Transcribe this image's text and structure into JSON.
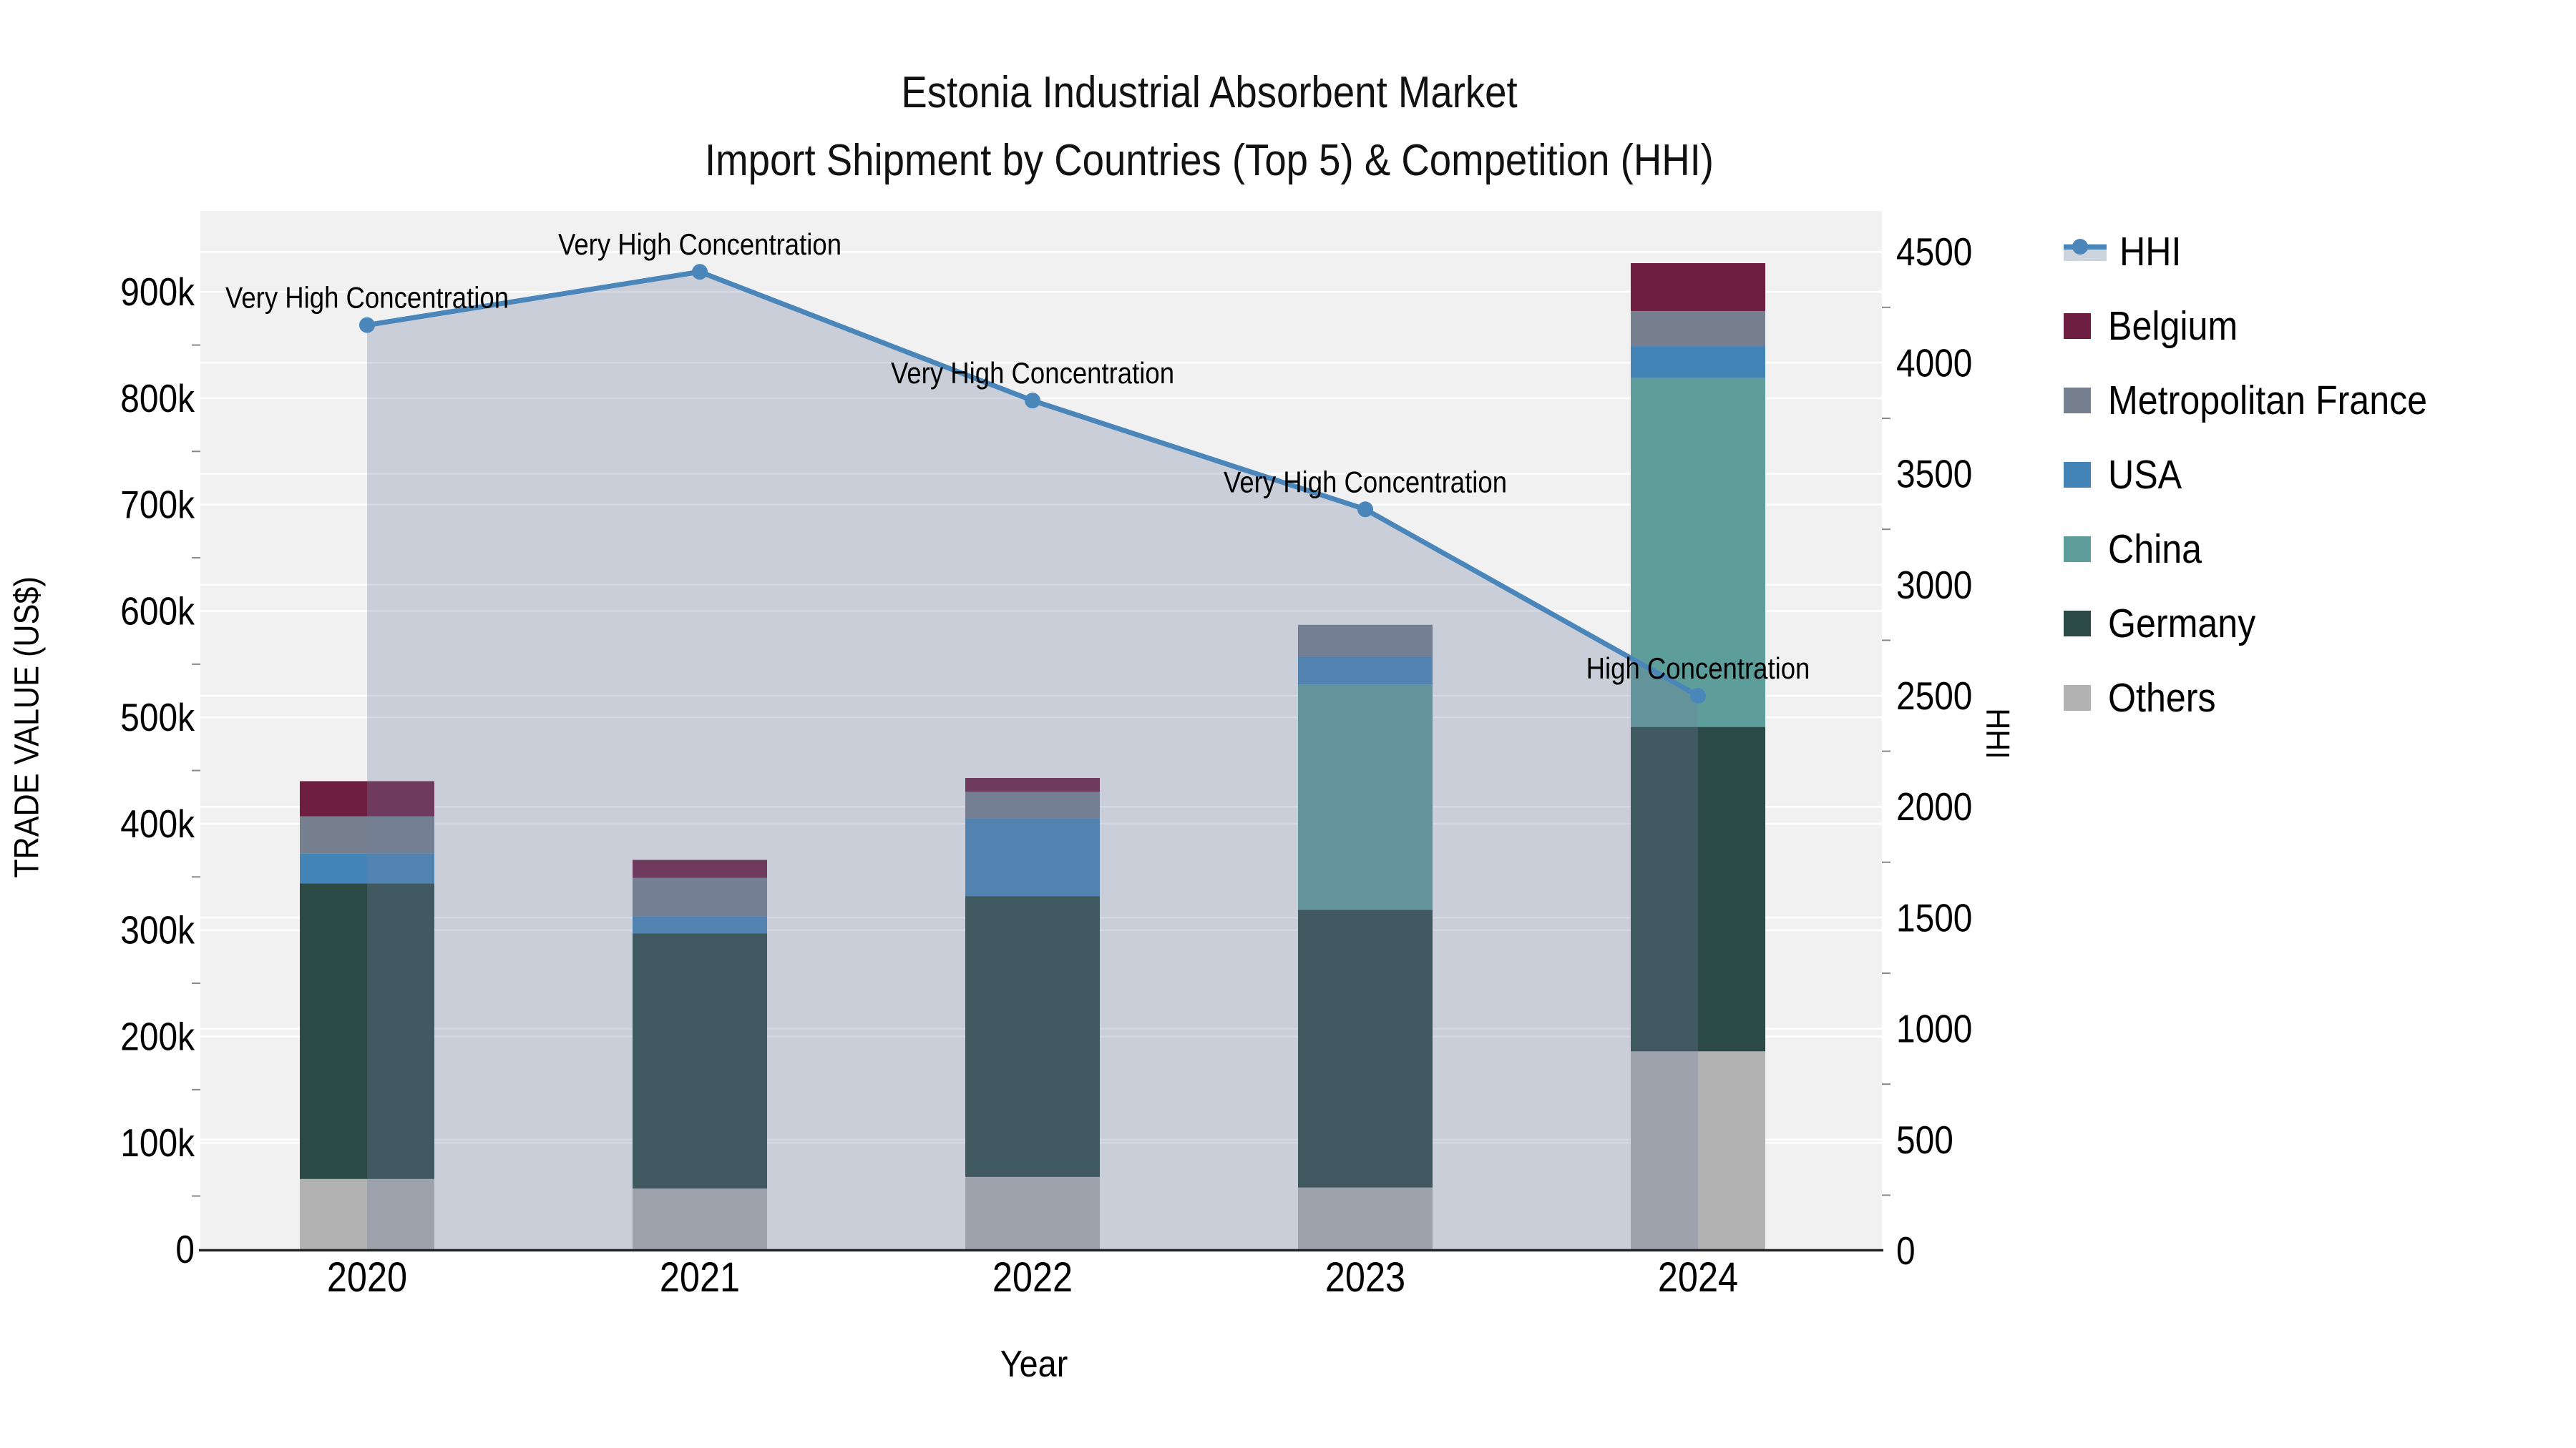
{
  "title": {
    "line1": "Estonia Industrial Absorbent Market",
    "line2": "Import Shipment by Countries (Top 5) & Competition (HHI)"
  },
  "axes": {
    "left": {
      "title": "TRADE VALUE (US$)",
      "tick_labels": [
        "0",
        "100k",
        "200k",
        "300k",
        "400k",
        "500k",
        "600k",
        "700k",
        "800k",
        "900k"
      ]
    },
    "right": {
      "title": "HHI",
      "tick_labels": [
        "0",
        "500",
        "1000",
        "1500",
        "2000",
        "2500",
        "3000",
        "3500",
        "4000",
        "4500"
      ]
    },
    "x": {
      "title": "Year",
      "tick_labels": [
        "2020",
        "2021",
        "2022",
        "2023",
        "2024"
      ]
    }
  },
  "legend": {
    "items": [
      {
        "label": "HHI",
        "type": "line",
        "line_color": "#4a86ba",
        "band_color": "#ccd5de"
      },
      {
        "label": "Belgium",
        "type": "patch",
        "color": "#6e1e41"
      },
      {
        "label": "Metropolitan France",
        "type": "patch",
        "color": "#76808f"
      },
      {
        "label": "USA",
        "type": "patch",
        "color": "#4584b6"
      },
      {
        "label": "China",
        "type": "patch",
        "color": "#5d9e9b"
      },
      {
        "label": "Germany",
        "type": "patch",
        "color": "#2c4a45"
      },
      {
        "label": "Others",
        "type": "patch",
        "color": "#b2b2b2"
      }
    ]
  },
  "chart_data": {
    "type": "combo-stacked-bar-line",
    "title": "Estonia Industrial Absorbent Market — Import Shipment by Countries (Top 5) & Competition (HHI)",
    "categories": [
      "2020",
      "2021",
      "2022",
      "2023",
      "2024"
    ],
    "xlabel": "Year",
    "ylabel_left": "TRADE VALUE (US$)",
    "ylabel_right": "HHI",
    "left_axis_range": [
      0,
      900000
    ],
    "right_axis_range": [
      0,
      4500
    ],
    "grid": true,
    "legend_position": "right",
    "bar_unit": "US$ thousands",
    "bar_stack_order_bottom_to_top": [
      "Others",
      "Germany",
      "China",
      "USA",
      "Metropolitan France",
      "Belgium"
    ],
    "series": [
      {
        "name": "Others",
        "color": "#b2b2b2",
        "values_k_usd": [
          66,
          57,
          68,
          58,
          186
        ]
      },
      {
        "name": "Germany",
        "color": "#2c4a45",
        "values_k_usd": [
          278,
          240,
          264,
          261,
          305
        ]
      },
      {
        "name": "China",
        "color": "#5d9e9b",
        "values_k_usd": [
          0,
          0,
          0,
          212,
          328
        ]
      },
      {
        "name": "USA",
        "color": "#4584b6",
        "values_k_usd": [
          28,
          16,
          73,
          26,
          30
        ]
      },
      {
        "name": "Metropolitan France",
        "color": "#76808f",
        "values_k_usd": [
          35,
          36,
          25,
          30,
          33
        ]
      },
      {
        "name": "Belgium",
        "color": "#6e1e41",
        "values_k_usd": [
          33,
          17,
          13,
          0,
          45
        ]
      }
    ],
    "bar_totals_k_usd": [
      440,
      366,
      443,
      587,
      927
    ],
    "line_series": {
      "name": "HHI",
      "axis": "right",
      "color": "#4a86ba",
      "fill_color_rgba": "rgba(112,126,158,0.30)",
      "values": [
        4170,
        4410,
        3830,
        3340,
        2500
      ]
    },
    "annotations": [
      {
        "category": "2020",
        "text": "Very High Concentration"
      },
      {
        "category": "2021",
        "text": "Very High Concentration"
      },
      {
        "category": "2022",
        "text": "Very High Concentration"
      },
      {
        "category": "2023",
        "text": "Very High Concentration"
      },
      {
        "category": "2024",
        "text": "High Concentration"
      }
    ],
    "plot_background": "#f1f1f1",
    "gridline_color": "#ffffff"
  }
}
